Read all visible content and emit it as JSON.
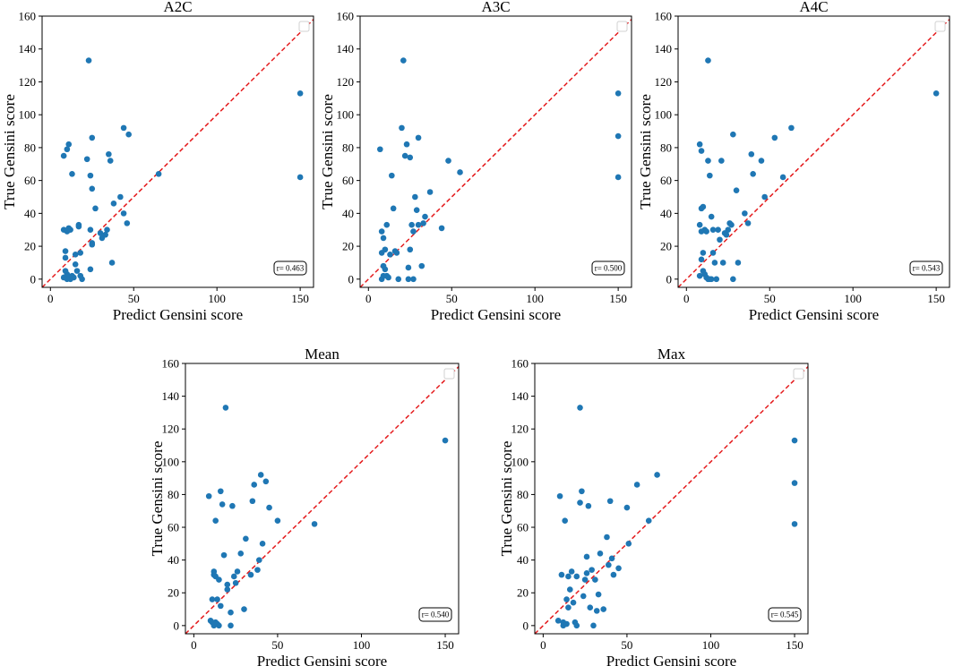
{
  "chart_data": [
    {
      "type": "scatter",
      "title": "A2C",
      "xlabel": "Predict Gensini score",
      "ylabel": "True Gensini score",
      "xlim": [
        -5,
        158
      ],
      "ylim": [
        -5,
        160
      ],
      "xticks": [
        0,
        50,
        100,
        150
      ],
      "yticks": [
        0,
        20,
        40,
        60,
        80,
        100,
        120,
        140,
        160
      ],
      "r_label": "r= 0.463",
      "legend": "top-right",
      "reference_line": "y = x",
      "points": [
        [
          8,
          30
        ],
        [
          9,
          17
        ],
        [
          10,
          29
        ],
        [
          11,
          31
        ],
        [
          12,
          30
        ],
        [
          8,
          75
        ],
        [
          10,
          79
        ],
        [
          11,
          82
        ],
        [
          13,
          64
        ],
        [
          15,
          15
        ],
        [
          9,
          13
        ],
        [
          10,
          3
        ],
        [
          11,
          1
        ],
        [
          12,
          0
        ],
        [
          13,
          2
        ],
        [
          9,
          5
        ],
        [
          8,
          1
        ],
        [
          10,
          0
        ],
        [
          14,
          1
        ],
        [
          17,
          33
        ],
        [
          17,
          32
        ],
        [
          15,
          9
        ],
        [
          16,
          5
        ],
        [
          18,
          16
        ],
        [
          18,
          2
        ],
        [
          19,
          0
        ],
        [
          23,
          133
        ],
        [
          22,
          73
        ],
        [
          24,
          63
        ],
        [
          25,
          86
        ],
        [
          25,
          55
        ],
        [
          24,
          30
        ],
        [
          25,
          22
        ],
        [
          24,
          6
        ],
        [
          25,
          21
        ],
        [
          27,
          43
        ],
        [
          30,
          28
        ],
        [
          31,
          25
        ],
        [
          33,
          27
        ],
        [
          34,
          30
        ],
        [
          35,
          76
        ],
        [
          36,
          72
        ],
        [
          37,
          10
        ],
        [
          38,
          46
        ],
        [
          42,
          50
        ],
        [
          44,
          92
        ],
        [
          44,
          40
        ],
        [
          46,
          34
        ],
        [
          47,
          88
        ],
        [
          65,
          64
        ],
        [
          150,
          113
        ],
        [
          150,
          62
        ]
      ]
    },
    {
      "type": "scatter",
      "title": "A3C",
      "xlabel": "Predict Gensini score",
      "ylabel": "True Gensini score",
      "xlim": [
        -5,
        158
      ],
      "ylim": [
        -5,
        160
      ],
      "xticks": [
        0,
        50,
        100,
        150
      ],
      "yticks": [
        0,
        20,
        40,
        60,
        80,
        100,
        120,
        140,
        160
      ],
      "r_label": "r= 0.500",
      "legend": "top-right",
      "reference_line": "y = x",
      "points": [
        [
          7,
          79
        ],
        [
          8,
          29
        ],
        [
          9,
          25
        ],
        [
          10,
          18
        ],
        [
          11,
          33
        ],
        [
          8,
          16
        ],
        [
          9,
          8
        ],
        [
          10,
          6
        ],
        [
          11,
          2
        ],
        [
          12,
          1
        ],
        [
          8,
          0
        ],
        [
          9,
          2
        ],
        [
          13,
          15
        ],
        [
          14,
          63
        ],
        [
          15,
          43
        ],
        [
          16,
          17
        ],
        [
          17,
          16
        ],
        [
          18,
          0
        ],
        [
          20,
          92
        ],
        [
          21,
          133
        ],
        [
          22,
          75
        ],
        [
          23,
          82
        ],
        [
          25,
          74
        ],
        [
          26,
          33
        ],
        [
          27,
          29
        ],
        [
          25,
          18
        ],
        [
          24,
          0
        ],
        [
          24,
          7
        ],
        [
          27,
          0
        ],
        [
          28,
          50
        ],
        [
          29,
          42
        ],
        [
          30,
          33
        ],
        [
          30,
          86
        ],
        [
          32,
          8
        ],
        [
          33,
          34
        ],
        [
          34,
          38
        ],
        [
          37,
          53
        ],
        [
          44,
          31
        ],
        [
          48,
          72
        ],
        [
          55,
          65
        ],
        [
          150,
          113
        ],
        [
          150,
          87
        ],
        [
          150,
          62
        ]
      ]
    },
    {
      "type": "scatter",
      "title": "A4C",
      "xlabel": "Predict Gensini score",
      "ylabel": "True Gensini score",
      "xlim": [
        -5,
        158
      ],
      "ylim": [
        -5,
        160
      ],
      "xticks": [
        0,
        50,
        100,
        150
      ],
      "yticks": [
        0,
        20,
        40,
        60,
        80,
        100,
        120,
        140,
        160
      ],
      "r_label": "r= 0.543",
      "legend": "top-right",
      "reference_line": "y = x",
      "points": [
        [
          8,
          82
        ],
        [
          9,
          78
        ],
        [
          9,
          43
        ],
        [
          10,
          44
        ],
        [
          8,
          33
        ],
        [
          9,
          29
        ],
        [
          10,
          16
        ],
        [
          11,
          30
        ],
        [
          12,
          29
        ],
        [
          9,
          12
        ],
        [
          10,
          5
        ],
        [
          11,
          3
        ],
        [
          12,
          1
        ],
        [
          13,
          0
        ],
        [
          14,
          0
        ],
        [
          15,
          0
        ],
        [
          8,
          2
        ],
        [
          13,
          133
        ],
        [
          13,
          72
        ],
        [
          14,
          63
        ],
        [
          15,
          38
        ],
        [
          16,
          30
        ],
        [
          16,
          16
        ],
        [
          17,
          10
        ],
        [
          18,
          0
        ],
        [
          19,
          30
        ],
        [
          20,
          24
        ],
        [
          21,
          72
        ],
        [
          22,
          10
        ],
        [
          23,
          28
        ],
        [
          24,
          27
        ],
        [
          25,
          30
        ],
        [
          26,
          34
        ],
        [
          27,
          33
        ],
        [
          28,
          88
        ],
        [
          28,
          0
        ],
        [
          30,
          54
        ],
        [
          31,
          10
        ],
        [
          35,
          40
        ],
        [
          37,
          34
        ],
        [
          39,
          76
        ],
        [
          40,
          64
        ],
        [
          45,
          72
        ],
        [
          47,
          50
        ],
        [
          53,
          86
        ],
        [
          58,
          62
        ],
        [
          63,
          92
        ],
        [
          150,
          113
        ]
      ]
    },
    {
      "type": "scatter",
      "title": "Mean",
      "xlabel": "Predict Gensini score",
      "ylabel": "True Gensini score",
      "xlim": [
        -5,
        158
      ],
      "ylim": [
        -5,
        160
      ],
      "xticks": [
        0,
        50,
        100,
        150
      ],
      "yticks": [
        0,
        20,
        40,
        60,
        80,
        100,
        120,
        140,
        160
      ],
      "r_label": "r= 0.540",
      "legend": "top-right",
      "reference_line": "y = x",
      "points": [
        [
          9,
          79
        ],
        [
          10,
          3
        ],
        [
          11,
          16
        ],
        [
          12,
          31
        ],
        [
          13,
          64
        ],
        [
          12,
          0
        ],
        [
          13,
          2
        ],
        [
          14,
          1
        ],
        [
          15,
          0
        ],
        [
          11,
          2
        ],
        [
          12,
          33
        ],
        [
          13,
          30
        ],
        [
          14,
          16
        ],
        [
          15,
          28
        ],
        [
          16,
          12
        ],
        [
          16,
          82
        ],
        [
          17,
          74
        ],
        [
          18,
          43
        ],
        [
          19,
          133
        ],
        [
          20,
          22
        ],
        [
          20,
          25
        ],
        [
          22,
          8
        ],
        [
          22,
          0
        ],
        [
          23,
          73
        ],
        [
          24,
          30
        ],
        [
          25,
          26
        ],
        [
          26,
          33
        ],
        [
          28,
          44
        ],
        [
          30,
          10
        ],
        [
          31,
          53
        ],
        [
          34,
          31
        ],
        [
          35,
          76
        ],
        [
          36,
          86
        ],
        [
          38,
          34
        ],
        [
          39,
          40
        ],
        [
          40,
          92
        ],
        [
          41,
          50
        ],
        [
          43,
          88
        ],
        [
          45,
          72
        ],
        [
          50,
          64
        ],
        [
          72,
          62
        ],
        [
          150,
          113
        ]
      ]
    },
    {
      "type": "scatter",
      "title": "Max",
      "xlabel": "Predict Gensini score",
      "ylabel": "True Gensini score",
      "xlim": [
        -5,
        158
      ],
      "ylim": [
        -5,
        160
      ],
      "xticks": [
        0,
        50,
        100,
        150
      ],
      "yticks": [
        0,
        20,
        40,
        60,
        80,
        100,
        120,
        140,
        160
      ],
      "r_label": "r= 0.545",
      "legend": "top-right",
      "reference_line": "y = x",
      "points": [
        [
          9,
          3
        ],
        [
          10,
          79
        ],
        [
          11,
          31
        ],
        [
          12,
          2
        ],
        [
          13,
          64
        ],
        [
          12,
          0
        ],
        [
          14,
          1
        ],
        [
          15,
          30
        ],
        [
          14,
          16
        ],
        [
          15,
          11
        ],
        [
          16,
          22
        ],
        [
          17,
          33
        ],
        [
          18,
          14
        ],
        [
          19,
          2
        ],
        [
          20,
          0
        ],
        [
          20,
          30
        ],
        [
          22,
          133
        ],
        [
          22,
          75
        ],
        [
          23,
          82
        ],
        [
          24,
          18
        ],
        [
          25,
          28
        ],
        [
          26,
          32
        ],
        [
          27,
          73
        ],
        [
          26,
          42
        ],
        [
          28,
          11
        ],
        [
          29,
          34
        ],
        [
          30,
          0
        ],
        [
          31,
          28
        ],
        [
          32,
          9
        ],
        [
          33,
          19
        ],
        [
          34,
          44
        ],
        [
          36,
          10
        ],
        [
          38,
          54
        ],
        [
          39,
          37
        ],
        [
          40,
          76
        ],
        [
          41,
          41
        ],
        [
          42,
          31
        ],
        [
          45,
          35
        ],
        [
          50,
          72
        ],
        [
          51,
          50
        ],
        [
          56,
          86
        ],
        [
          63,
          64
        ],
        [
          68,
          92
        ],
        [
          150,
          113
        ],
        [
          150,
          87
        ],
        [
          150,
          62
        ]
      ]
    }
  ],
  "style": {
    "point_color": "#1f77b4",
    "line_color": "#e41a1c",
    "axis_color": "#000000",
    "legend_border_color": "#d0d0d0"
  }
}
